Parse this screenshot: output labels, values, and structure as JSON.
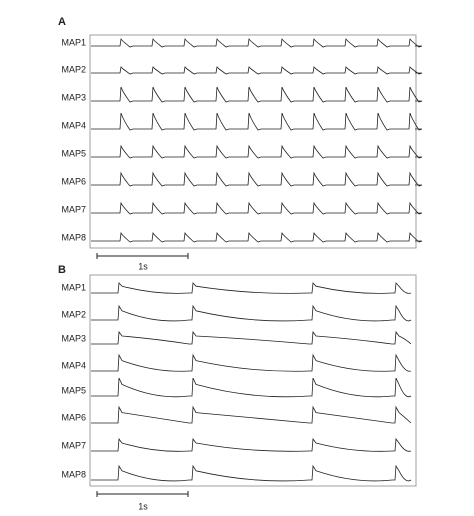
{
  "panels": [
    {
      "label": "A",
      "traces": [
        "MAP1",
        "MAP2",
        "MAP3",
        "MAP4",
        "MAP5",
        "MAP6",
        "MAP7",
        "MAP8"
      ],
      "scale_bar": "1s"
    },
    {
      "label": "B",
      "traces": [
        "MAP1",
        "MAP2",
        "MAP3",
        "MAP4",
        "MAP5",
        "MAP6",
        "MAP7",
        "MAP8"
      ],
      "scale_bar": "1s"
    }
  ]
}
